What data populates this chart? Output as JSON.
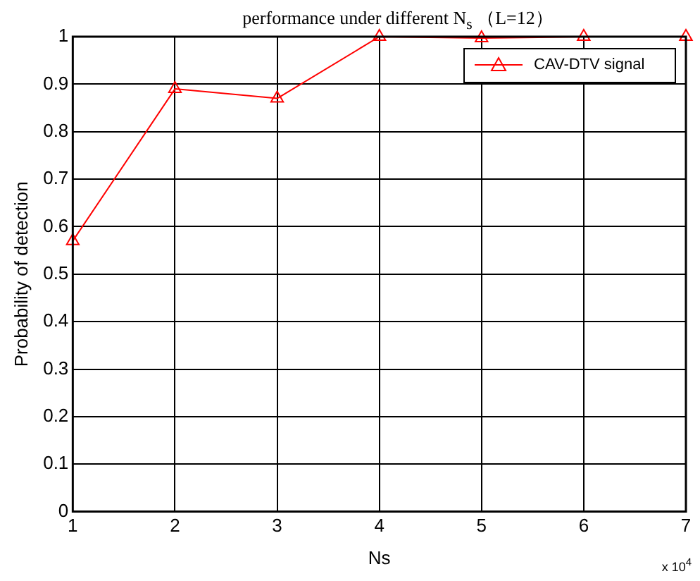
{
  "chart_data": {
    "type": "line",
    "title": "performance under different N$_{s}$ （L=12）",
    "xlabel": "Ns",
    "ylabel": "Probability of detection",
    "annotations": [
      "x 10$^{4}$"
    ],
    "x": [
      1,
      2,
      3,
      4,
      5,
      6,
      7
    ],
    "series": [
      {
        "name": "CAV-DTV signal",
        "color": "#ff0000",
        "values": [
          0.57,
          0.89,
          0.87,
          1.0,
          0.997,
          1.0,
          1.0
        ]
      }
    ],
    "xlim": [
      1,
      7
    ],
    "xticks": [
      1,
      2,
      3,
      4,
      5,
      6,
      7
    ],
    "ylim": [
      0,
      1
    ],
    "yticks": [
      0,
      0.1,
      0.2,
      0.3,
      0.4,
      0.5,
      0.6,
      0.7,
      0.8,
      0.9,
      1
    ],
    "grid": true,
    "legend": "top right",
    "marker": "triangle",
    "line_style": "solid"
  }
}
